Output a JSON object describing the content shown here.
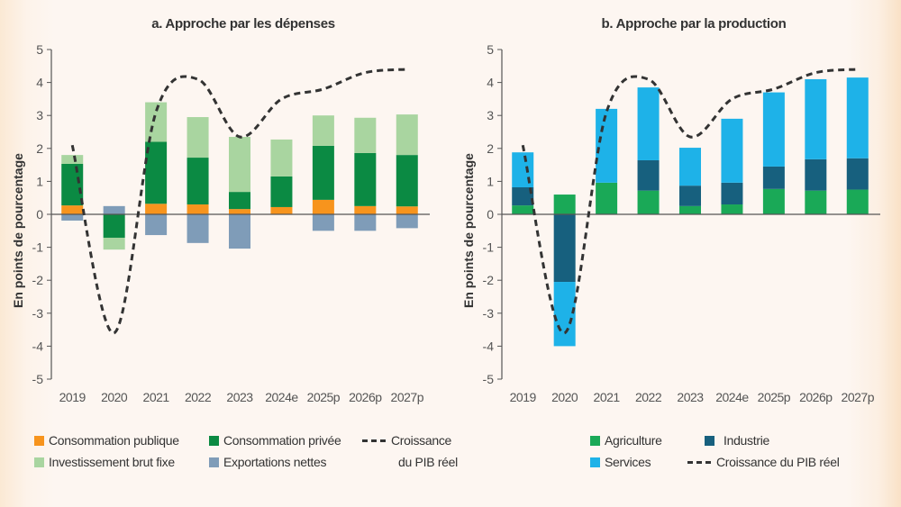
{
  "chart_data": [
    {
      "id": "a",
      "type": "bar",
      "stacked": true,
      "title": "a. Approche par les dépenses",
      "xlabel": "",
      "ylabel": "En points de pourcentage",
      "ylim": [
        -5,
        5
      ],
      "yticks": [
        "5",
        "4",
        "3",
        "2",
        "1",
        "0",
        "-1",
        "-2",
        "-3",
        "-4",
        "-5"
      ],
      "categories": [
        "2019",
        "2020",
        "2021",
        "2022",
        "2023",
        "2024e",
        "2025p",
        "2026p",
        "2027p"
      ],
      "series": [
        {
          "name": "Consommation publique",
          "color": "#f7941d",
          "values": [
            0.27,
            0.0,
            0.32,
            0.3,
            0.16,
            0.22,
            0.44,
            0.25,
            0.24
          ]
        },
        {
          "name": "Consommation privée",
          "color": "#0b8a43",
          "values": [
            1.26,
            -0.71,
            1.88,
            1.42,
            0.52,
            0.93,
            1.64,
            1.61,
            1.56
          ]
        },
        {
          "name": "Investissement brut fixe",
          "color": "#a9d5a0",
          "values": [
            0.27,
            -0.36,
            1.2,
            1.23,
            1.67,
            1.12,
            0.92,
            1.07,
            1.23
          ]
        },
        {
          "name": "Exportations nettes",
          "color": "#7f9cb8",
          "values": [
            -0.19,
            0.25,
            -0.63,
            -0.87,
            -1.04,
            0.0,
            -0.5,
            -0.5,
            -0.42
          ]
        }
      ],
      "line": {
        "name": "Croissance du PIB réel",
        "color": "#333333",
        "values": [
          2.1,
          -3.6,
          3.1,
          4.1,
          2.35,
          3.5,
          3.8,
          4.3,
          4.4
        ]
      },
      "legend": {
        "placement": "bottom",
        "items": [
          {
            "label": "Consommation publique",
            "kind": "swatch",
            "color": "#f7941d"
          },
          {
            "label": "Consommation privée",
            "kind": "swatch",
            "color": "#0b8a43"
          },
          {
            "label": "Croissance",
            "label2": "du PIB réel",
            "kind": "dash"
          },
          {
            "label": "Investissement brut fixe",
            "kind": "swatch",
            "color": "#a9d5a0"
          },
          {
            "label": "Exportations nettes",
            "kind": "swatch",
            "color": "#7f9cb8"
          }
        ]
      },
      "grid": false
    },
    {
      "id": "b",
      "type": "bar",
      "stacked": true,
      "title": "b. Approche par la production",
      "xlabel": "",
      "ylabel": "En points de pourcentage",
      "ylim": [
        -5,
        5
      ],
      "yticks": [
        "5",
        "4",
        "3",
        "2",
        "1",
        "0",
        "-1",
        "-2",
        "-3",
        "-4",
        "-5"
      ],
      "categories": [
        "2019",
        "2020",
        "2021",
        "2022",
        "2023",
        "2024e",
        "2025p",
        "2026p",
        "2027p"
      ],
      "series": [
        {
          "name": "Agriculture",
          "color": "#1aa957",
          "values": [
            0.27,
            0.6,
            0.96,
            0.72,
            0.25,
            0.3,
            0.77,
            0.72,
            0.75
          ]
        },
        {
          "name": "Industrie",
          "color": "#17607e",
          "values": [
            0.55,
            -2.05,
            0.0,
            0.92,
            0.62,
            0.66,
            0.68,
            0.95,
            0.95
          ]
        },
        {
          "name": "Services",
          "color": "#1eb2e8",
          "values": [
            1.06,
            -1.95,
            2.24,
            2.21,
            1.15,
            1.94,
            2.25,
            2.43,
            2.45
          ]
        }
      ],
      "line": {
        "name": "Croissance du PIB réel",
        "color": "#333333",
        "values": [
          2.1,
          -3.6,
          3.1,
          4.1,
          2.35,
          3.5,
          3.8,
          4.3,
          4.4
        ]
      },
      "legend": {
        "placement": "bottom",
        "items": [
          {
            "label": "Agriculture",
            "kind": "swatch",
            "color": "#1aa957"
          },
          {
            "label": "Industrie",
            "kind": "swatch",
            "color": "#17607e"
          },
          {
            "label": "Services",
            "kind": "swatch",
            "color": "#1eb2e8"
          },
          {
            "label": "Croissance du PIB réel",
            "kind": "dash"
          }
        ]
      },
      "grid": false
    }
  ]
}
